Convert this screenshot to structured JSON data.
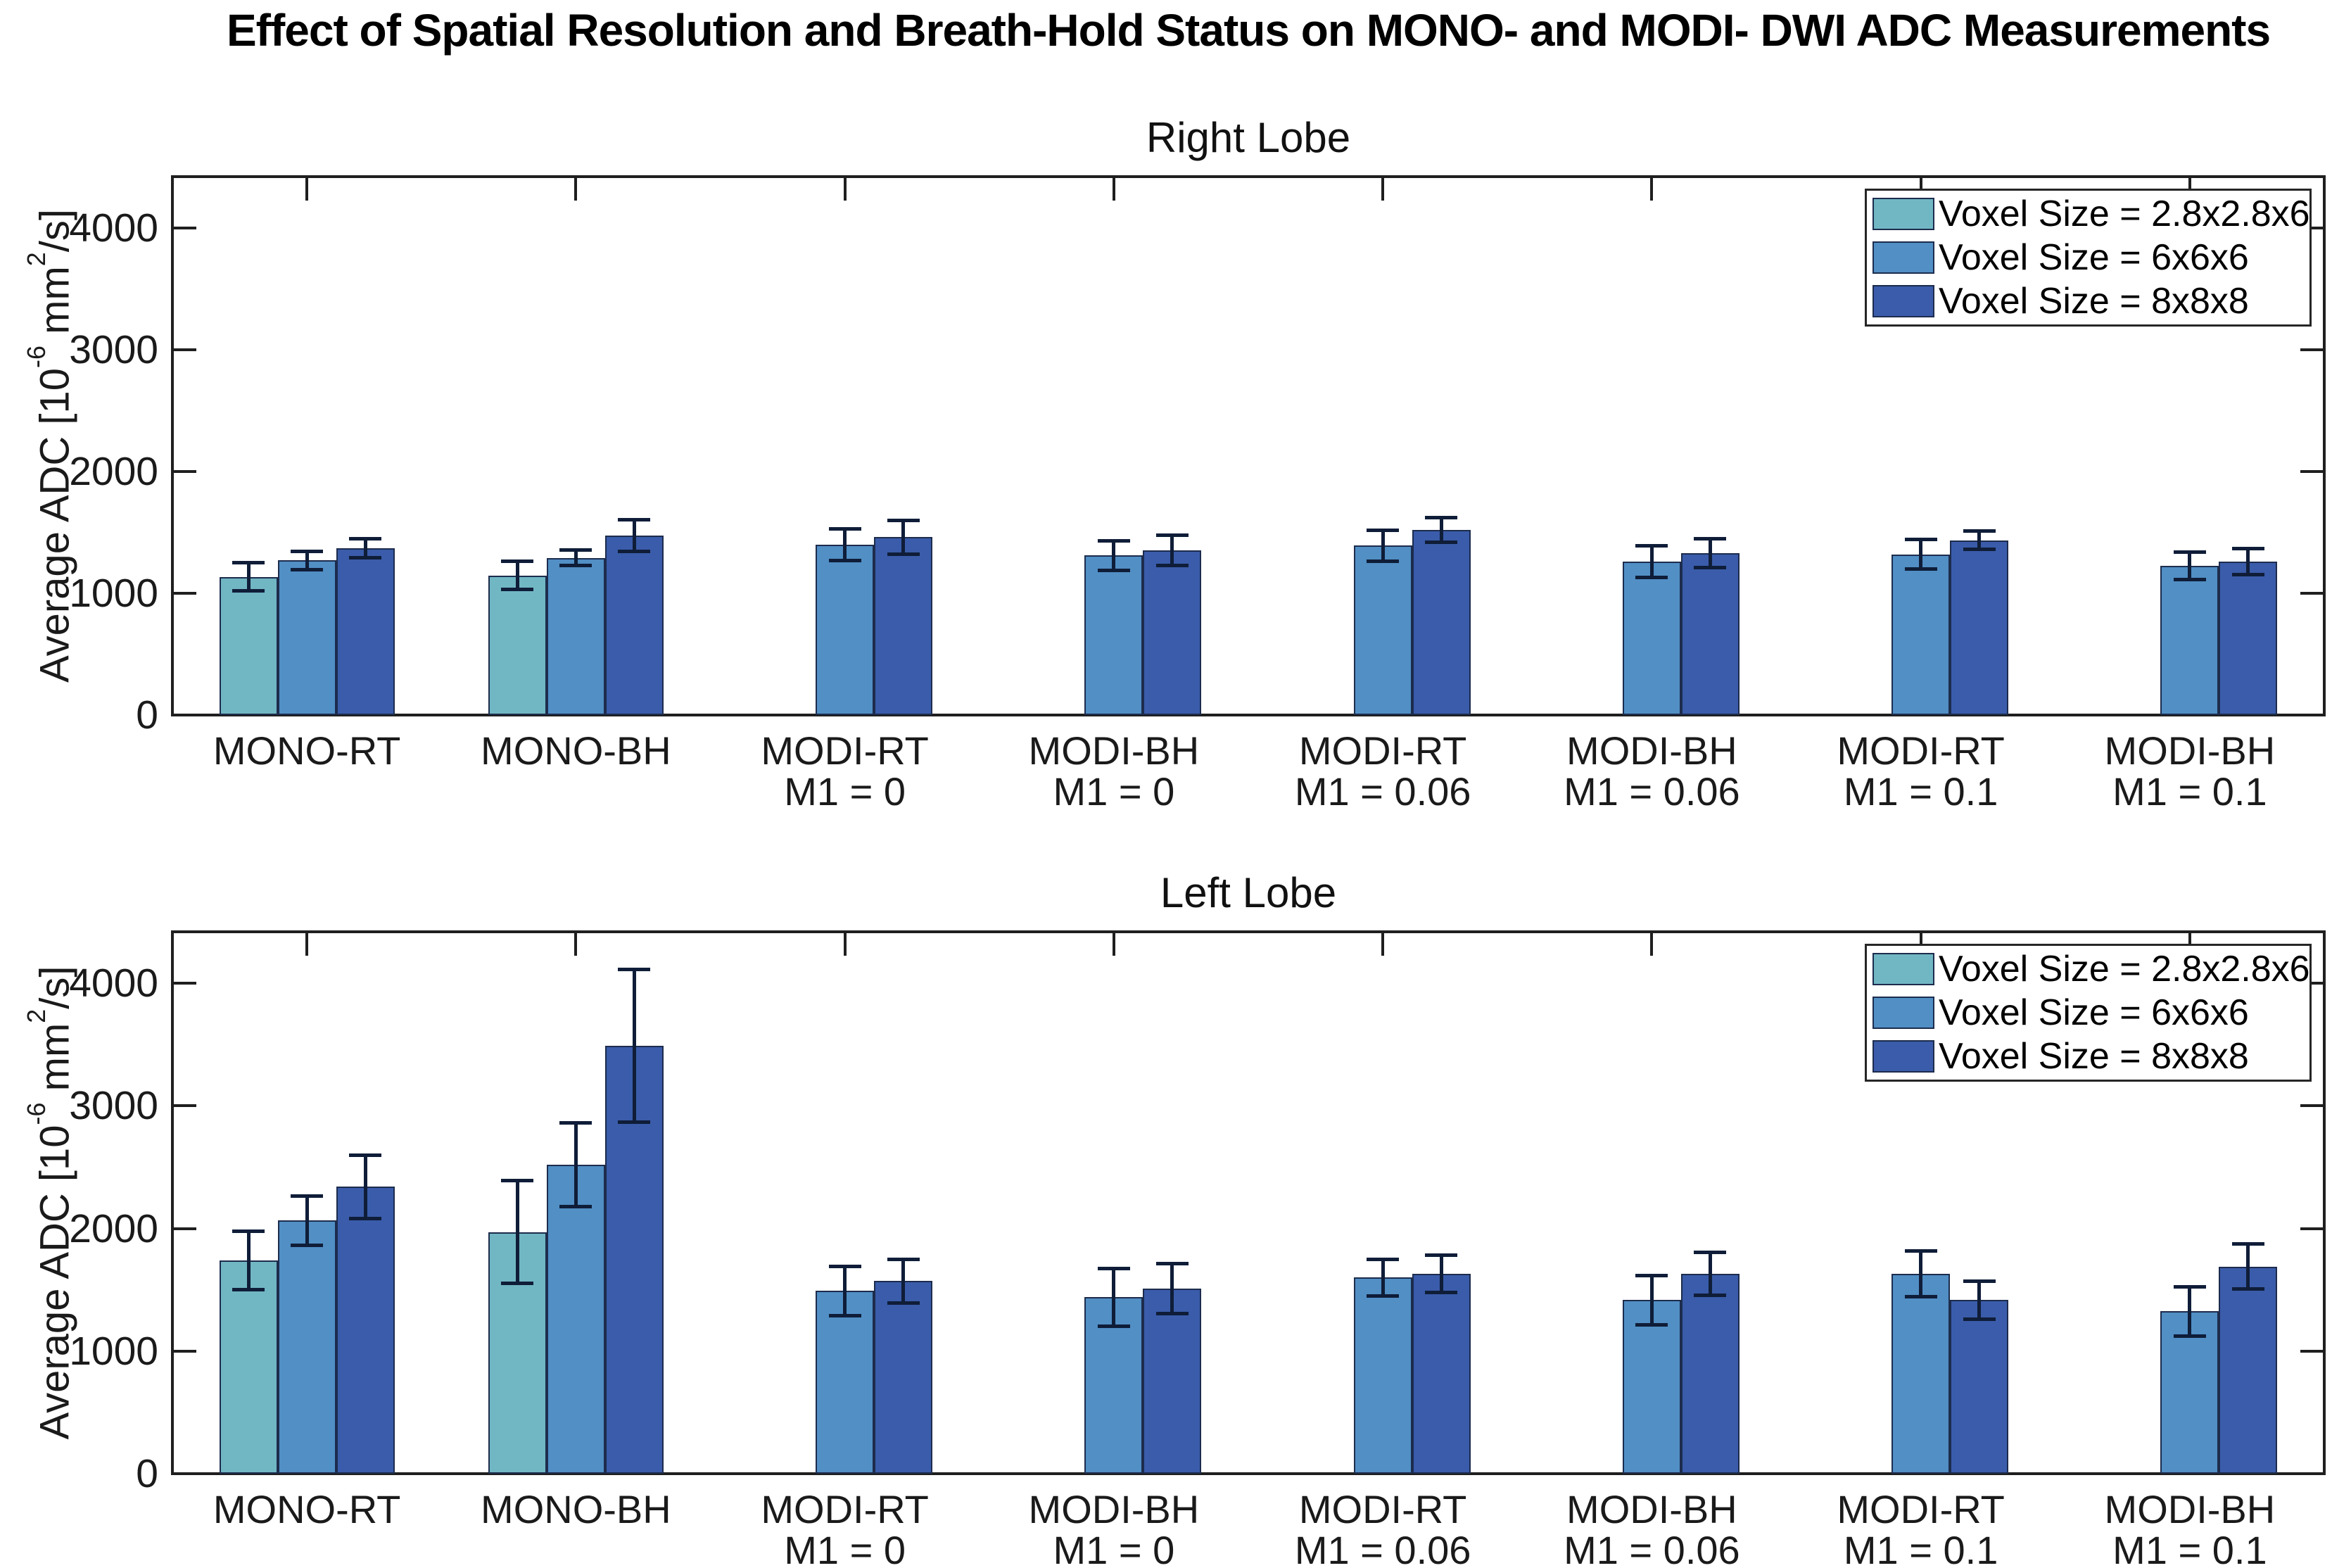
{
  "header": {
    "title": "Effect of Spatial Resolution and Breath-Hold Status on MONO- and MODI- DWI ADC Measurements"
  },
  "colors": {
    "voxel_2_8": "#71b7c3",
    "voxel_6": "#518fc5",
    "voxel_8": "#3a5caa",
    "bar_edge": "#1d2c4d",
    "error_bar": "#0f1d38",
    "axis": "#1f1f1f"
  },
  "legend": {
    "entries": [
      {
        "label": "Voxel Size = 2.8x2.8x6",
        "color_key": "voxel_2_8"
      },
      {
        "label": "Voxel Size = 6x6x6",
        "color_key": "voxel_6"
      },
      {
        "label": "Voxel Size = 8x8x8",
        "color_key": "voxel_8"
      }
    ],
    "position": "top-right"
  },
  "ylabel": {
    "base": "Average ADC [10",
    "sup1": "-6",
    "mid": " mm",
    "sup2": "2",
    "end": "/s]"
  },
  "chart_data": [
    {
      "type": "bar",
      "title": "Right Lobe",
      "ylabel": "Average ADC [10^-6 mm^2/s]",
      "ylim": [
        0,
        4420
      ],
      "yticks": [
        0,
        1000,
        2000,
        3000,
        4000
      ],
      "ytick_labels": [
        "0",
        "1000",
        "2000",
        "3000",
        "4000"
      ],
      "grid": false,
      "categories": [
        {
          "line1": "MONO-RT",
          "line2": ""
        },
        {
          "line1": "MONO-BH",
          "line2": ""
        },
        {
          "line1": "MODI-RT",
          "line2": "M1 = 0"
        },
        {
          "line1": "MODI-BH",
          "line2": "M1 = 0"
        },
        {
          "line1": "MODI-RT",
          "line2": "M1 = 0.06"
        },
        {
          "line1": "MODI-BH",
          "line2": "M1 = 0.06"
        },
        {
          "line1": "MODI-RT",
          "line2": "M1 = 0.1"
        },
        {
          "line1": "MODI-BH",
          "line2": "M1 = 0.1"
        }
      ],
      "series": [
        {
          "name": "Voxel Size = 2.8x2.8x6",
          "color_key": "voxel_2_8",
          "values": [
            1135,
            1145,
            null,
            null,
            null,
            null,
            null,
            null
          ],
          "errors": [
            115,
            115,
            null,
            null,
            null,
            null,
            null,
            null
          ]
        },
        {
          "name": "Voxel Size = 6x6x6",
          "color_key": "voxel_6",
          "values": [
            1270,
            1290,
            1400,
            1310,
            1390,
            1260,
            1320,
            1225
          ],
          "errors": [
            75,
            65,
            130,
            120,
            125,
            128,
            120,
            115
          ]
        },
        {
          "name": "Voxel Size = 8x8x8",
          "color_key": "voxel_8",
          "values": [
            1370,
            1475,
            1460,
            1350,
            1520,
            1330,
            1435,
            1260
          ],
          "errors": [
            80,
            130,
            140,
            125,
            100,
            118,
            75,
            107
          ]
        }
      ]
    },
    {
      "type": "bar",
      "title": "Left Lobe",
      "ylabel": "Average ADC [10^-6 mm^2/s]",
      "ylim": [
        0,
        4420
      ],
      "yticks": [
        0,
        1000,
        2000,
        3000,
        4000
      ],
      "ytick_labels": [
        "0",
        "1000",
        "2000",
        "3000",
        "4000"
      ],
      "grid": false,
      "categories": [
        {
          "line1": "MONO-RT",
          "line2": ""
        },
        {
          "line1": "MONO-BH",
          "line2": ""
        },
        {
          "line1": "MODI-RT",
          "line2": "M1 = 0"
        },
        {
          "line1": "MODI-BH",
          "line2": "M1 = 0"
        },
        {
          "line1": "MODI-RT",
          "line2": "M1 = 0.06"
        },
        {
          "line1": "MODI-BH",
          "line2": "M1 = 0.06"
        },
        {
          "line1": "MODI-RT",
          "line2": "M1 = 0.1"
        },
        {
          "line1": "MODI-BH",
          "line2": "M1 = 0.1"
        }
      ],
      "series": [
        {
          "name": "Voxel Size = 2.8x2.8x6",
          "color_key": "voxel_2_8",
          "values": [
            1740,
            1970,
            null,
            null,
            null,
            null,
            null,
            null
          ],
          "errors": [
            240,
            420,
            null,
            null,
            null,
            null,
            null,
            null
          ]
        },
        {
          "name": "Voxel Size = 6x6x6",
          "color_key": "voxel_6",
          "values": [
            2065,
            2520,
            1490,
            1440,
            1600,
            1415,
            1630,
            1325
          ],
          "errors": [
            200,
            340,
            200,
            235,
            150,
            200,
            185,
            200
          ]
        },
        {
          "name": "Voxel Size = 8x8x8",
          "color_key": "voxel_8",
          "values": [
            2340,
            3490,
            1570,
            1510,
            1630,
            1630,
            1415,
            1690
          ],
          "errors": [
            258,
            625,
            180,
            203,
            150,
            175,
            155,
            185
          ]
        }
      ]
    }
  ]
}
